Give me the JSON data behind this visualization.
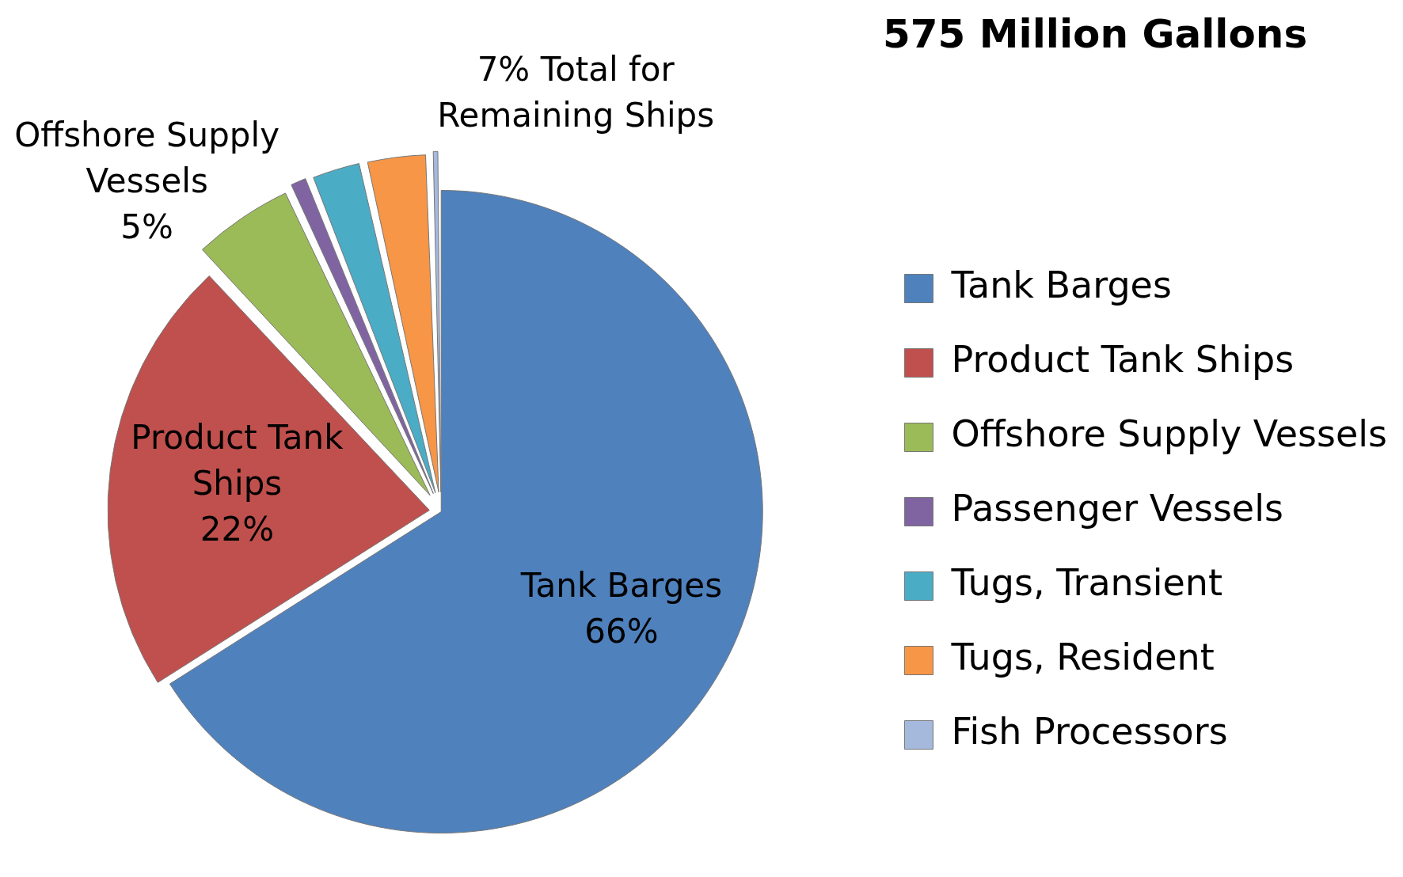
{
  "chart_data": {
    "type": "pie",
    "title": "575 Million Gallons",
    "categories": [
      "Tank Barges",
      "Product Tank Ships",
      "Offshore Supply Vessels",
      "Passenger Vessels",
      "Tugs, Transient",
      "Tugs, Resident",
      "Fish Processors"
    ],
    "values": [
      66,
      22,
      5,
      1,
      2.5,
      3,
      0.5
    ],
    "colors": [
      "#4f81bd",
      "#c0504d",
      "#9bbb59",
      "#8064a2",
      "#4bacc6",
      "#f79646",
      "#a5b9dd"
    ],
    "value_labels": [
      "Tank Barges\n66%",
      "Product Tank\nShips\n22%",
      "Offshore Supply\nVessels\n5%",
      null,
      null,
      null,
      null
    ],
    "annotations": [
      "7% Total for\nRemaining Ships"
    ],
    "legend": "right"
  }
}
